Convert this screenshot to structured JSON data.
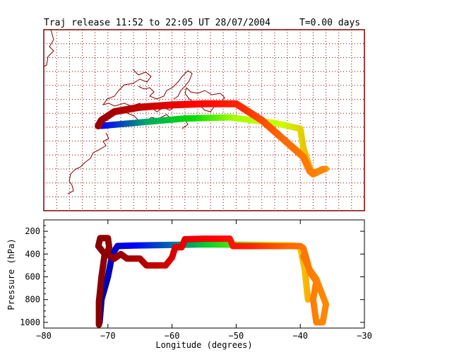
{
  "title": "Traj release 11:52 to 22:05 UT 28/07/2004",
  "time_label": "T=0.00 days",
  "colors": {
    "frame": "#800000",
    "grid": "#800000",
    "coast": "#800000",
    "axis": "#000000",
    "gradient_start": "#0000ff",
    "gradient_mid": "#00cc33",
    "gradient_late": "#ccff00",
    "gradient_end": "#ff8000"
  },
  "chart_data": [
    {
      "type": "line",
      "name": "map",
      "xlim": [
        -80,
        -30
      ],
      "grid": true,
      "series": [
        {
          "name": "blue-to-green-track",
          "gradient": [
            "#0000ff",
            "#00aa66",
            "#00dd00",
            "#aaff00",
            "#ccff00",
            "#ff9900"
          ],
          "points": [
            [
              -71,
              31
            ],
            [
              -65,
              31.6
            ],
            [
              -58,
              32.3
            ],
            [
              -51,
              32.5
            ],
            [
              -44,
              31.5
            ],
            [
              -40,
              30.5
            ],
            [
              -39.5,
              27
            ],
            [
              -38.5,
              23.5
            ],
            [
              -38,
              22.7
            ],
            [
              -36,
              23.4
            ]
          ]
        },
        {
          "name": "red-track",
          "gradient": [
            "#990000",
            "#cc0000",
            "#ff0000",
            "#ff2200",
            "#ff6600",
            "#ff8800"
          ],
          "points": [
            [
              -71.5,
              31
            ],
            [
              -71,
              32
            ],
            [
              -69,
              33.5
            ],
            [
              -65,
              34.3
            ],
            [
              -60,
              34.7
            ],
            [
              -55,
              34.9
            ],
            [
              -50,
              34.9
            ],
            [
              -46,
              32
            ],
            [
              -42,
              28
            ],
            [
              -39.5,
              25.5
            ],
            [
              -38.5,
              23
            ],
            [
              -38,
              22.5
            ],
            [
              -36.5,
              23.3
            ]
          ]
        }
      ]
    },
    {
      "type": "line",
      "name": "pressure",
      "xlabel": "Longitude  (degrees)",
      "ylabel": "Pressure  (hPa)",
      "xlim": [
        -80,
        -30
      ],
      "ylim": [
        1050,
        100
      ],
      "x_ticks": [
        -80,
        -70,
        -60,
        -50,
        -40,
        -30
      ],
      "y_ticks": [
        200,
        400,
        600,
        800,
        1000
      ],
      "series": [
        {
          "name": "blue-to-green-track",
          "gradient": [
            "#000099",
            "#0000ff",
            "#0066aa",
            "#00cc33",
            "#66ee00",
            "#ccff00",
            "#ffaa00"
          ],
          "points": [
            [
              -71.3,
              1000
            ],
            [
              -71,
              800
            ],
            [
              -70,
              600
            ],
            [
              -69.3,
              400
            ],
            [
              -68.5,
              330
            ],
            [
              -66,
              325
            ],
            [
              -60,
              320
            ],
            [
              -55,
              315
            ],
            [
              -50,
              318
            ],
            [
              -45,
              320
            ],
            [
              -41,
              325
            ],
            [
              -40,
              340
            ],
            [
              -39.8,
              400
            ],
            [
              -39.3,
              540
            ],
            [
              -39,
              700
            ],
            [
              -38.8,
              800
            ]
          ]
        },
        {
          "name": "red-track",
          "gradient": [
            "#880000",
            "#aa0000",
            "#dd0000",
            "#ff0000",
            "#ff2200",
            "#ff6600",
            "#ff8800"
          ],
          "points": [
            [
              -71.4,
              1020
            ],
            [
              -71.4,
              820
            ],
            [
              -71,
              600
            ],
            [
              -70.5,
              400
            ],
            [
              -71.5,
              330
            ],
            [
              -71.2,
              260
            ],
            [
              -70,
              260
            ],
            [
              -69.8,
              340
            ],
            [
              -70.2,
              400
            ],
            [
              -69,
              440
            ],
            [
              -68,
              400
            ],
            [
              -67,
              440
            ],
            [
              -65,
              440
            ],
            [
              -64,
              500
            ],
            [
              -61,
              500
            ],
            [
              -60,
              430
            ],
            [
              -59.5,
              340
            ],
            [
              -58.5,
              340
            ],
            [
              -58,
              270
            ],
            [
              -55,
              265
            ],
            [
              -51,
              265
            ],
            [
              -50.5,
              330
            ],
            [
              -45,
              330
            ],
            [
              -41.5,
              330
            ],
            [
              -40,
              330
            ],
            [
              -39.5,
              350
            ],
            [
              -39,
              450
            ],
            [
              -38.5,
              560
            ],
            [
              -37.5,
              640
            ],
            [
              -38,
              800
            ],
            [
              -37.5,
              1000
            ],
            [
              -36.5,
              1000
            ],
            [
              -36,
              840
            ],
            [
              -37.5,
              620
            ],
            [
              -38.5,
              540
            ],
            [
              -39.5,
              420
            ]
          ]
        }
      ]
    }
  ]
}
